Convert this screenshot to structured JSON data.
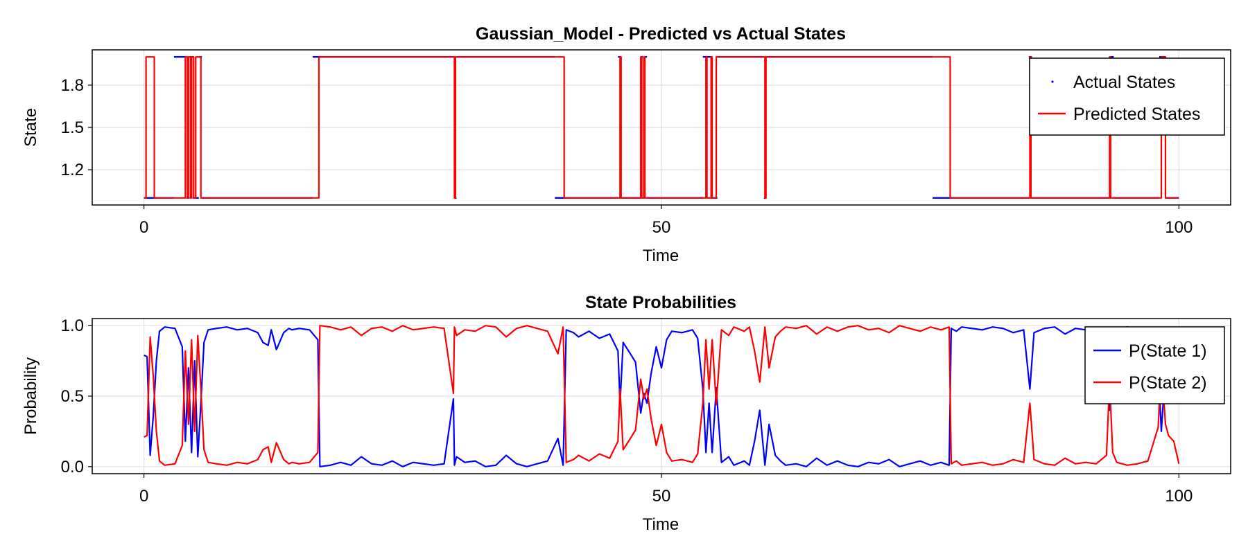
{
  "chart_data": [
    {
      "type": "line",
      "title": "Gaussian_Model - Predicted vs Actual States",
      "xlabel": "Time",
      "ylabel": "State",
      "xlim": [
        -5,
        105
      ],
      "ylim": [
        0.95,
        2.05
      ],
      "xticks": [
        0,
        50,
        100
      ],
      "xtick_labels": [
        "0",
        "50",
        "100"
      ],
      "yticks": [
        1.2,
        1.5,
        1.8
      ],
      "ytick_labels": [
        "1.2",
        "1.5",
        "1.8"
      ],
      "grid": true,
      "legend_position": "top-right",
      "series": [
        {
          "name": "Actual States",
          "style": "points",
          "color": "#0000ff",
          "segments": [
            {
              "x0": 0.0,
              "x1": 2.9,
              "y": 1
            },
            {
              "x0": 2.9,
              "x1": 4.1,
              "y": 2
            },
            {
              "x0": 4.1,
              "x1": 4.4,
              "y": 1
            },
            {
              "x0": 4.4,
              "x1": 4.7,
              "y": 2
            },
            {
              "x0": 4.7,
              "x1": 5.3,
              "y": 1
            },
            {
              "x0": 5.3,
              "x1": 5.6,
              "y": 2
            },
            {
              "x0": 5.6,
              "x1": 16.3,
              "y": 1
            },
            {
              "x0": 16.3,
              "x1": 30.0,
              "y": 2
            },
            {
              "x0": 30.0,
              "x1": 30.2,
              "y": 1
            },
            {
              "x0": 30.2,
              "x1": 39.7,
              "y": 2
            },
            {
              "x0": 39.7,
              "x1": 45.8,
              "y": 1
            },
            {
              "x0": 45.8,
              "x1": 46.0,
              "y": 2
            },
            {
              "x0": 46.0,
              "x1": 48.0,
              "y": 1
            },
            {
              "x0": 48.0,
              "x1": 48.2,
              "y": 2
            },
            {
              "x0": 48.2,
              "x1": 48.4,
              "y": 1
            },
            {
              "x0": 48.4,
              "x1": 48.6,
              "y": 2
            },
            {
              "x0": 48.6,
              "x1": 54.0,
              "y": 1
            },
            {
              "x0": 54.0,
              "x1": 54.8,
              "y": 2
            },
            {
              "x0": 54.8,
              "x1": 55.4,
              "y": 1
            },
            {
              "x0": 55.4,
              "x1": 59.9,
              "y": 2
            },
            {
              "x0": 59.9,
              "x1": 60.1,
              "y": 1
            },
            {
              "x0": 60.1,
              "x1": 76.2,
              "y": 2
            },
            {
              "x0": 76.2,
              "x1": 85.5,
              "y": 1
            },
            {
              "x0": 85.5,
              "x1": 85.8,
              "y": 2
            },
            {
              "x0": 85.8,
              "x1": 93.4,
              "y": 1
            },
            {
              "x0": 93.4,
              "x1": 93.7,
              "y": 2
            },
            {
              "x0": 93.7,
              "x1": 98.1,
              "y": 1
            },
            {
              "x0": 98.1,
              "x1": 98.7,
              "y": 2
            },
            {
              "x0": 98.7,
              "x1": 100.0,
              "y": 1
            }
          ]
        },
        {
          "name": "Predicted States",
          "style": "line",
          "color": "#ff0000",
          "steps": [
            [
              0.0,
              1
            ],
            [
              0.2,
              2
            ],
            [
              1.0,
              1
            ],
            [
              4.0,
              2
            ],
            [
              4.2,
              1
            ],
            [
              4.3,
              2
            ],
            [
              4.5,
              1
            ],
            [
              4.6,
              2
            ],
            [
              4.8,
              1
            ],
            [
              5.0,
              2
            ],
            [
              5.5,
              1
            ],
            [
              16.9,
              2
            ],
            [
              30.0,
              1
            ],
            [
              30.1,
              2
            ],
            [
              40.6,
              1
            ],
            [
              46.0,
              2
            ],
            [
              46.1,
              1
            ],
            [
              48.0,
              2
            ],
            [
              48.1,
              1
            ],
            [
              48.3,
              2
            ],
            [
              48.4,
              1
            ],
            [
              54.3,
              2
            ],
            [
              54.4,
              1
            ],
            [
              54.8,
              2
            ],
            [
              54.9,
              1
            ],
            [
              55.3,
              2
            ],
            [
              60.0,
              1
            ],
            [
              60.1,
              2
            ],
            [
              77.9,
              1
            ],
            [
              85.6,
              2
            ],
            [
              85.7,
              1
            ],
            [
              93.3,
              2
            ],
            [
              93.4,
              1
            ],
            [
              98.3,
              2
            ],
            [
              98.7,
              1
            ],
            [
              100.0,
              1
            ]
          ]
        }
      ]
    },
    {
      "type": "line",
      "title": "State Probabilities",
      "xlabel": "Time",
      "ylabel": "Probability",
      "xlim": [
        -5,
        105
      ],
      "ylim": [
        -0.05,
        1.05
      ],
      "xticks": [
        0,
        50,
        100
      ],
      "xtick_labels": [
        "0",
        "50",
        "100"
      ],
      "yticks": [
        0.0,
        0.5,
        1.0
      ],
      "ytick_labels": [
        "0.0",
        "0.5",
        "1.0"
      ],
      "grid": true,
      "legend_position": "top-right",
      "series": [
        {
          "name": "P(State 1)",
          "color": "#0000ff",
          "complement_of": "P(State 2)"
        },
        {
          "name": "P(State 2)",
          "color": "#ff0000",
          "x": [
            0.0,
            0.3,
            0.6,
            0.9,
            1.2,
            1.5,
            2.0,
            3.0,
            3.7,
            4.0,
            4.3,
            4.6,
            4.9,
            5.2,
            5.5,
            5.8,
            6.2,
            7.0,
            8.0,
            9.0,
            10.0,
            11.0,
            11.5,
            12.0,
            12.3,
            12.8,
            13.5,
            14.0,
            14.3,
            15.0,
            16.0,
            16.8,
            17.0,
            18.0,
            19.0,
            20.0,
            21.0,
            22.0,
            23.0,
            24.0,
            25.0,
            26.0,
            27.0,
            28.0,
            29.0,
            29.9,
            30.0,
            30.2,
            31.0,
            32.0,
            33.0,
            34.0,
            35.0,
            36.0,
            37.0,
            38.0,
            39.0,
            40.0,
            40.5,
            40.8,
            41.5,
            42.0,
            43.0,
            44.0,
            45.0,
            45.8,
            46.0,
            46.3,
            47.0,
            47.5,
            48.0,
            48.3,
            48.6,
            49.0,
            49.5,
            50.0,
            50.5,
            51.0,
            52.0,
            53.0,
            53.5,
            54.0,
            54.3,
            54.6,
            54.9,
            55.3,
            55.8,
            56.5,
            57.0,
            58.0,
            58.5,
            59.0,
            59.5,
            60.0,
            60.4,
            61.0,
            61.5,
            62.0,
            63.0,
            64.0,
            65.0,
            66.0,
            67.0,
            68.0,
            69.0,
            70.0,
            71.0,
            72.0,
            73.0,
            74.0,
            75.0,
            76.0,
            77.0,
            77.8,
            78.0,
            78.5,
            79.0,
            80.0,
            81.0,
            82.0,
            83.0,
            84.0,
            85.0,
            85.6,
            86.0,
            87.0,
            88.0,
            89.0,
            90.0,
            91.0,
            92.0,
            93.0,
            93.3,
            93.6,
            94.0,
            95.0,
            96.0,
            97.0,
            98.0,
            98.3,
            98.7,
            99.0,
            99.5,
            100.0
          ],
          "values": [
            0.21,
            0.22,
            0.92,
            0.64,
            0.25,
            0.04,
            0.01,
            0.02,
            0.15,
            0.82,
            0.3,
            0.9,
            0.25,
            0.93,
            0.55,
            0.12,
            0.03,
            0.02,
            0.01,
            0.03,
            0.02,
            0.05,
            0.12,
            0.14,
            0.03,
            0.17,
            0.05,
            0.02,
            0.03,
            0.02,
            0.03,
            0.1,
            1.0,
            0.99,
            0.97,
            0.99,
            0.93,
            0.98,
            0.99,
            0.96,
            1.0,
            0.97,
            0.98,
            0.99,
            0.98,
            0.52,
            0.99,
            0.93,
            0.97,
            0.96,
            1.0,
            0.99,
            0.92,
            0.98,
            1.0,
            0.98,
            0.96,
            0.8,
            0.99,
            0.03,
            0.05,
            0.08,
            0.04,
            0.09,
            0.06,
            0.18,
            0.55,
            0.12,
            0.2,
            0.26,
            0.62,
            0.48,
            0.55,
            0.34,
            0.15,
            0.3,
            0.1,
            0.04,
            0.05,
            0.03,
            0.09,
            0.45,
            0.9,
            0.55,
            0.9,
            0.44,
            0.97,
            0.93,
            0.99,
            0.96,
            0.99,
            0.82,
            0.6,
            0.99,
            0.7,
            0.92,
            0.96,
            0.99,
            0.98,
            1.0,
            0.94,
            0.99,
            0.96,
            0.99,
            1.0,
            0.97,
            0.98,
            0.95,
            1.0,
            0.98,
            0.96,
            0.99,
            0.97,
            0.99,
            0.02,
            0.04,
            0.01,
            0.02,
            0.03,
            0.01,
            0.02,
            0.05,
            0.03,
            0.45,
            0.05,
            0.02,
            0.01,
            0.06,
            0.02,
            0.03,
            0.02,
            0.08,
            0.6,
            0.1,
            0.03,
            0.01,
            0.02,
            0.04,
            0.28,
            0.75,
            0.3,
            0.22,
            0.18,
            0.02
          ]
        }
      ]
    }
  ]
}
